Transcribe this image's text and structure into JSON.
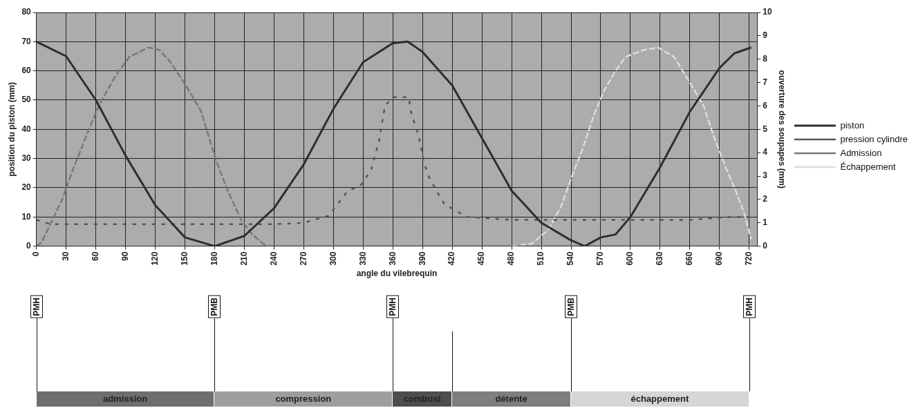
{
  "chart_data": [
    {
      "type": "line",
      "xlabel": "angle du vilebrequin",
      "ylabel": "position du piston (mm)",
      "y2label": "ouverture des soupapes (mm)",
      "xlim": [
        0,
        728
      ],
      "xticks": [
        0,
        30,
        60,
        90,
        120,
        150,
        180,
        210,
        240,
        270,
        300,
        330,
        360,
        390,
        420,
        450,
        480,
        510,
        540,
        570,
        600,
        630,
        660,
        690,
        720
      ],
      "ylim": [
        0,
        80
      ],
      "yticks": [
        0,
        10,
        20,
        30,
        40,
        50,
        60,
        70,
        80
      ],
      "y2lim": [
        0,
        10
      ],
      "y2ticks": [
        0,
        1,
        2,
        3,
        4,
        5,
        6,
        7,
        8,
        9,
        10
      ],
      "grid": true,
      "legend": "right",
      "marker": "none",
      "series": [
        {
          "name": "piston",
          "color": "#2e2e2e",
          "line_style": "solid",
          "x": [
            0,
            30,
            60,
            90,
            120,
            150,
            180,
            210,
            240,
            270,
            300,
            330,
            360,
            375,
            390,
            420,
            450,
            480,
            510,
            540,
            554,
            570,
            585,
            600,
            630,
            660,
            690,
            705,
            722
          ],
          "values": [
            70,
            65,
            50,
            31,
            14,
            3,
            0,
            3.5,
            13,
            28,
            47,
            63,
            69.5,
            70,
            66.5,
            55,
            37,
            19,
            8,
            2,
            0,
            3,
            4,
            10,
            27,
            46,
            61,
            66,
            68
          ]
        },
        {
          "name": "pression cylindre",
          "color": "#555555",
          "line_style": "dotted",
          "x": [
            0,
            15,
            60,
            120,
            180,
            240,
            270,
            295,
            314,
            328,
            338,
            346,
            352,
            360,
            376,
            379,
            384,
            388,
            391,
            396,
            404,
            412,
            424,
            436,
            480,
            540,
            600,
            660,
            700,
            720
          ],
          "values": [
            9,
            7.5,
            7.5,
            7.5,
            7.5,
            7.5,
            8,
            10.4,
            18.7,
            21,
            26,
            36,
            48,
            51,
            51,
            45,
            40,
            35,
            29,
            24,
            19,
            14.5,
            12,
            10,
            9,
            9,
            9,
            9,
            10,
            10
          ]
        },
        {
          "name": "Admission",
          "color": "#787878",
          "line_style": "dashed",
          "axis": "y2",
          "x": [
            0,
            5,
            26,
            37,
            53,
            64,
            80,
            94,
            113,
            124,
            135,
            152,
            166,
            182,
            193,
            207,
            218,
            232,
            720
          ],
          "values": [
            0,
            0.15,
            2,
            3.3,
            5,
            6.1,
            7.3,
            8.1,
            8.5,
            8.4,
            7.9,
            6.8,
            5.8,
            3.6,
            2.4,
            1.1,
            0.5,
            0,
            0
          ]
        },
        {
          "name": "Échappement",
          "color": "#dcdcdc",
          "line_style": "dashed",
          "axis": "y2",
          "x": [
            480,
            500,
            517,
            530,
            541,
            552,
            563,
            574,
            585,
            595,
            614,
            628,
            644,
            660,
            674,
            685,
            696,
            707,
            715,
            722
          ],
          "values": [
            0,
            0.1,
            0.7,
            1.7,
            3,
            4.2,
            5.6,
            6.7,
            7.5,
            8.1,
            8.4,
            8.5,
            8.1,
            7,
            6,
            4.6,
            3.4,
            2.3,
            1.4,
            0.3
          ]
        }
      ]
    },
    {
      "type": "other",
      "annotations": [
        "PMH",
        "PMB",
        "PMH",
        "PMB",
        "PMH",
        "admission",
        "compression",
        "combust",
        "détente",
        "échappement"
      ]
    }
  ]
}
